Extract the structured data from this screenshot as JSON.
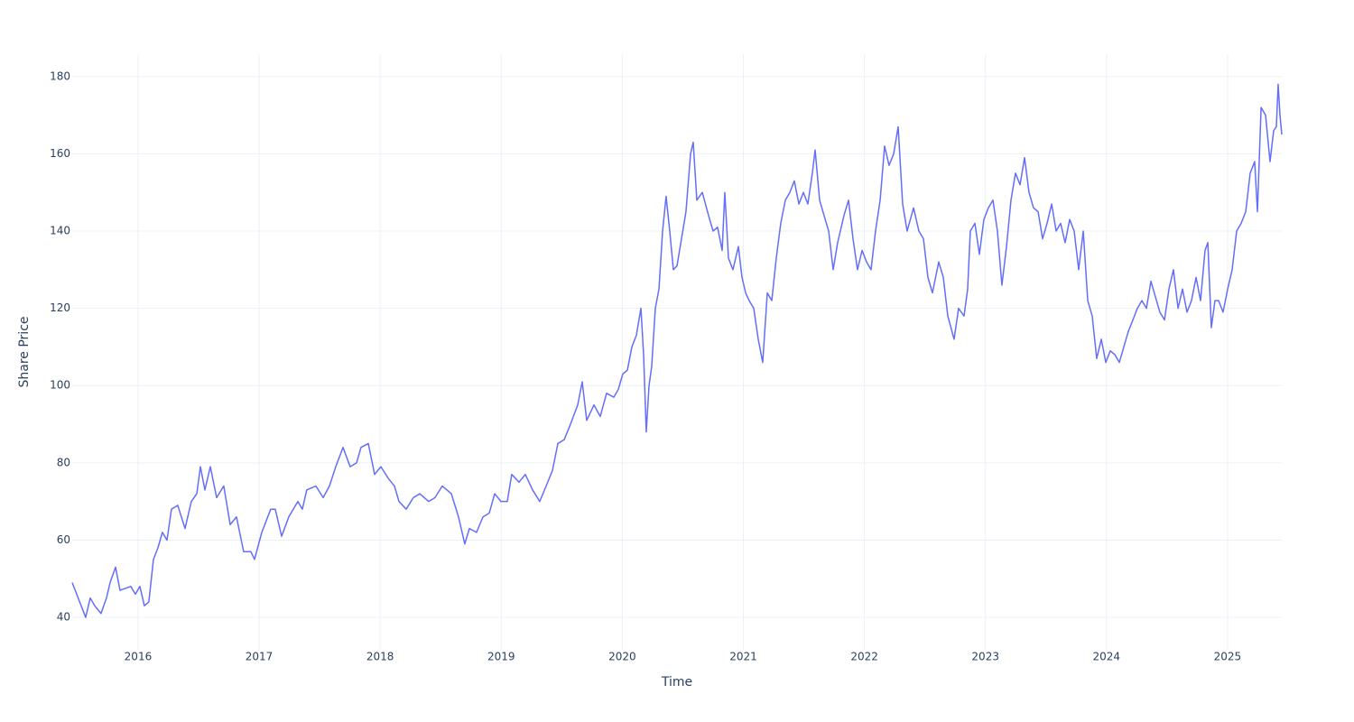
{
  "chart_data": {
    "type": "line",
    "xlabel": "Time",
    "ylabel": "Share Price",
    "color": "#636efa",
    "grid": true,
    "xlim": [
      2015.456,
      2025.448
    ],
    "xticks": [
      2016,
      2017,
      2018,
      2019,
      2020,
      2021,
      2022,
      2023,
      2024,
      2025
    ],
    "ylim": [
      31.6,
      185.8
    ],
    "yticks": [
      40,
      60,
      80,
      100,
      120,
      140,
      160,
      180
    ],
    "x": [
      2015.456,
      2015.567,
      2015.605,
      2015.642,
      2015.694,
      2015.739,
      2015.769,
      2015.814,
      2015.851,
      2015.94,
      2015.978,
      2016.015,
      2016.052,
      2016.089,
      2016.127,
      2016.164,
      2016.201,
      2016.239,
      2016.276,
      2016.328,
      2016.388,
      2016.44,
      2016.485,
      2016.515,
      2016.552,
      2016.597,
      2016.649,
      2016.708,
      2016.761,
      2016.813,
      2016.872,
      2016.932,
      2016.962,
      2017.022,
      2017.096,
      2017.133,
      2017.186,
      2017.245,
      2017.32,
      2017.357,
      2017.394,
      2017.469,
      2017.529,
      2017.581,
      2017.633,
      2017.693,
      2017.752,
      2017.805,
      2017.842,
      2017.902,
      2017.954,
      2018.006,
      2018.066,
      2018.118,
      2018.155,
      2018.215,
      2018.274,
      2018.327,
      2018.401,
      2018.453,
      2018.513,
      2018.588,
      2018.647,
      2018.699,
      2018.737,
      2018.796,
      2018.849,
      2018.901,
      2018.946,
      2018.998,
      2019.05,
      2019.087,
      2019.147,
      2019.199,
      2019.259,
      2019.318,
      2019.371,
      2019.423,
      2019.468,
      2019.52,
      2019.572,
      2019.632,
      2019.669,
      2019.706,
      2019.766,
      2019.818,
      2019.87,
      2019.93,
      2019.967,
      2020.004,
      2020.042,
      2020.079,
      2020.116,
      2020.154,
      2020.176,
      2020.198,
      2020.221,
      2020.243,
      2020.273,
      2020.303,
      2020.333,
      2020.362,
      2020.392,
      2020.422,
      2020.452,
      2020.489,
      2020.526,
      2020.564,
      2020.586,
      2020.616,
      2020.661,
      2020.713,
      2020.75,
      2020.787,
      2020.825,
      2020.847,
      2020.877,
      2020.914,
      2020.959,
      2020.989,
      2021.019,
      2021.048,
      2021.086,
      2021.123,
      2021.16,
      2021.198,
      2021.235,
      2021.272,
      2021.309,
      2021.347,
      2021.384,
      2021.421,
      2021.459,
      2021.496,
      2021.533,
      2021.57,
      2021.593,
      2021.63,
      2021.667,
      2021.705,
      2021.742,
      2021.779,
      2021.831,
      2021.869,
      2021.906,
      2021.943,
      2021.981,
      2022.018,
      2022.055,
      2022.092,
      2022.13,
      2022.167,
      2022.204,
      2022.242,
      2022.279,
      2022.316,
      2022.353,
      2022.406,
      2022.45,
      2022.488,
      2022.525,
      2022.562,
      2022.614,
      2022.652,
      2022.689,
      2022.741,
      2022.778,
      2022.823,
      2022.853,
      2022.875,
      2022.913,
      2022.95,
      2022.987,
      2023.024,
      2023.062,
      2023.099,
      2023.136,
      2023.174,
      2023.211,
      2023.248,
      2023.286,
      2023.323,
      2023.36,
      2023.397,
      2023.435,
      2023.472,
      2023.509,
      2023.547,
      2023.584,
      2023.621,
      2023.658,
      2023.696,
      2023.733,
      2023.77,
      2023.808,
      2023.845,
      2023.882,
      2023.919,
      2023.957,
      2023.994,
      2024.031,
      2024.069,
      2024.106,
      2024.143,
      2024.18,
      2024.218,
      2024.255,
      2024.292,
      2024.33,
      2024.367,
      2024.404,
      2024.441,
      2024.479,
      2024.516,
      2024.553,
      2024.591,
      2024.628,
      2024.665,
      2024.702,
      2024.74,
      2024.777,
      2024.814,
      2024.837,
      2024.866,
      2024.896,
      2024.926,
      2024.963,
      2025.001,
      2025.038,
      2025.075,
      2025.112,
      2025.15,
      2025.187,
      2025.224,
      2025.247,
      2025.277,
      2025.314,
      2025.351,
      2025.381,
      2025.403,
      2025.418,
      2025.433,
      2025.448
    ],
    "values": [
      49,
      40,
      45,
      43,
      41,
      45,
      49,
      53,
      47,
      48,
      46,
      48,
      43,
      44,
      55,
      58,
      62,
      60,
      68,
      69,
      63,
      70,
      72,
      79,
      73,
      79,
      71,
      74,
      64,
      66,
      57,
      57,
      55,
      62,
      68,
      68,
      61,
      66,
      70,
      68,
      73,
      74,
      71,
      74,
      79,
      84,
      79,
      80,
      84,
      85,
      77,
      79,
      76,
      74,
      70,
      68,
      71,
      72,
      70,
      71,
      74,
      72,
      66,
      59,
      63,
      62,
      66,
      67,
      72,
      70,
      70,
      77,
      75,
      77,
      73,
      70,
      74,
      78,
      85,
      86,
      90,
      95,
      101,
      91,
      95,
      92,
      98,
      97,
      99,
      103,
      104,
      110,
      113,
      120,
      108,
      88,
      100,
      105,
      120,
      125,
      140,
      149,
      140,
      130,
      131,
      138,
      145,
      160,
      163,
      148,
      150,
      144,
      140,
      141,
      135,
      150,
      133,
      130,
      136,
      128,
      124,
      122,
      120,
      112,
      106,
      124,
      122,
      133,
      142,
      148,
      150,
      153,
      147,
      150,
      147,
      155,
      161,
      148,
      144,
      140,
      130,
      137,
      144,
      148,
      138,
      130,
      135,
      132,
      130,
      140,
      148,
      162,
      157,
      160,
      167,
      147,
      140,
      146,
      140,
      138,
      128,
      124,
      132,
      128,
      118,
      112,
      120,
      118,
      125,
      140,
      142,
      134,
      143,
      146,
      148,
      140,
      126,
      136,
      148,
      155,
      152,
      159,
      150,
      146,
      145,
      138,
      142,
      147,
      140,
      142,
      137,
      143,
      140,
      130,
      140,
      122,
      118,
      107,
      112,
      106,
      109,
      108,
      106,
      110,
      114,
      117,
      120,
      122,
      120,
      127,
      123,
      119,
      117,
      125,
      130,
      120,
      125,
      119,
      122,
      128,
      122,
      135,
      137,
      115,
      122,
      122,
      119,
      125,
      130,
      140,
      142,
      145,
      155,
      158,
      145,
      172,
      170,
      158,
      166,
      167,
      178,
      170,
      165
    ]
  }
}
